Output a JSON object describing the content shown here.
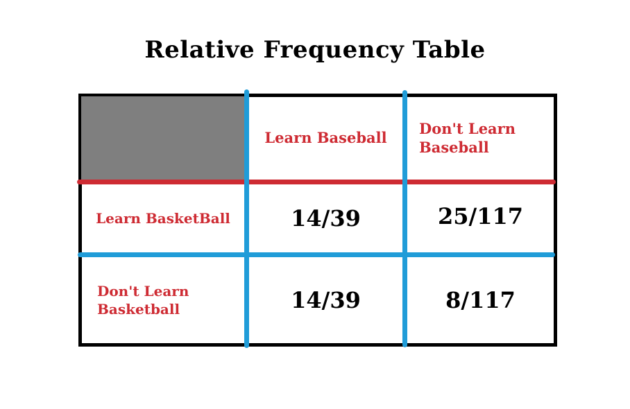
{
  "title": "Relative Frequency Table",
  "colors": {
    "red": "#ce2b33",
    "blue": "#209cd8",
    "gray": "#7f7f7f",
    "black": "#000000",
    "bg": "#ffffff"
  },
  "table": {
    "corner": "",
    "col_headers": {
      "learn_baseball": "Learn Baseball",
      "dont_learn_baseball": "Don't Learn\nBaseball"
    },
    "rows": [
      {
        "label": "Learn BasketBall",
        "learn_baseball": "14/39",
        "dont_learn_baseball": "25/117"
      },
      {
        "label": "Don't Learn\nBasketball",
        "learn_baseball": "14/39",
        "dont_learn_baseball": "8/117"
      }
    ]
  },
  "chart_data": {
    "type": "table",
    "title": "Relative Frequency Table",
    "column_headers": [
      "Learn Baseball",
      "Don't Learn Baseball"
    ],
    "row_headers": [
      "Learn BasketBall",
      "Don't Learn Basketball"
    ],
    "rows": [
      [
        "14/39",
        "25/117"
      ],
      [
        "14/39",
        "8/117"
      ]
    ],
    "notes": "two-way relative frequency table; header separators drawn as colored marker lines"
  }
}
